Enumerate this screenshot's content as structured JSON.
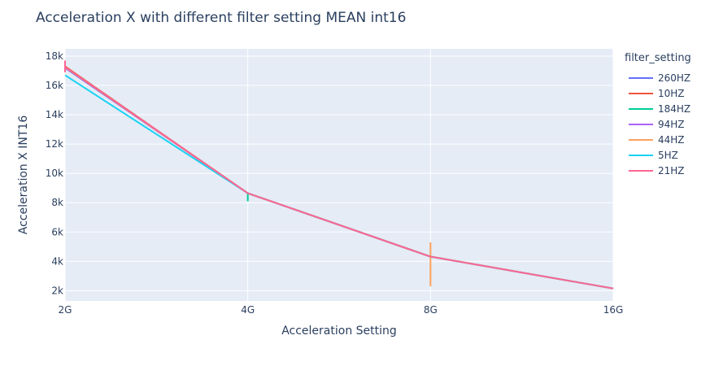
{
  "chart_data": {
    "type": "line",
    "title": "Acceleration X with different filter setting MEAN int16",
    "xlabel": "Acceleration Setting",
    "ylabel": "Acceleration X INT16",
    "categories": [
      "2G",
      "4G",
      "8G",
      "16G"
    ],
    "ylim": [
      1300,
      18500
    ],
    "yticks": [
      2000,
      4000,
      6000,
      8000,
      10000,
      12000,
      14000,
      16000,
      18000
    ],
    "ytick_labels": [
      "2k",
      "4k",
      "6k",
      "8k",
      "10k",
      "12k",
      "14k",
      "16k",
      "18k"
    ],
    "legend_title": "filter_setting",
    "series": [
      {
        "name": "260HZ",
        "color": "#636efa",
        "values": [
          17200,
          8650,
          4320,
          2150
        ]
      },
      {
        "name": "10HZ",
        "color": "#EF553B",
        "values": [
          17300,
          8650,
          4330,
          2150
        ]
      },
      {
        "name": "184HZ",
        "color": "#00cc96",
        "values": [
          17250,
          8650,
          4320,
          2150
        ],
        "extra_points": {
          "4G": [
            8100,
            8700
          ]
        }
      },
      {
        "name": "94HZ",
        "color": "#ab63fa",
        "values": [
          17250,
          8650,
          4320,
          2150
        ]
      },
      {
        "name": "44HZ",
        "color": "#FFA15A",
        "values": [
          17250,
          8650,
          4320,
          2150
        ],
        "extra_points": {
          "8G": [
            2300,
            5300
          ]
        }
      },
      {
        "name": "5HZ",
        "color": "#19d3f3",
        "values": [
          16700,
          8650,
          4320,
          2150
        ]
      },
      {
        "name": "21HZ",
        "color": "#FF6692",
        "values": [
          17250,
          8650,
          4320,
          2150
        ],
        "extra_points": {
          "2G": [
            16900,
            17700
          ]
        }
      }
    ]
  }
}
